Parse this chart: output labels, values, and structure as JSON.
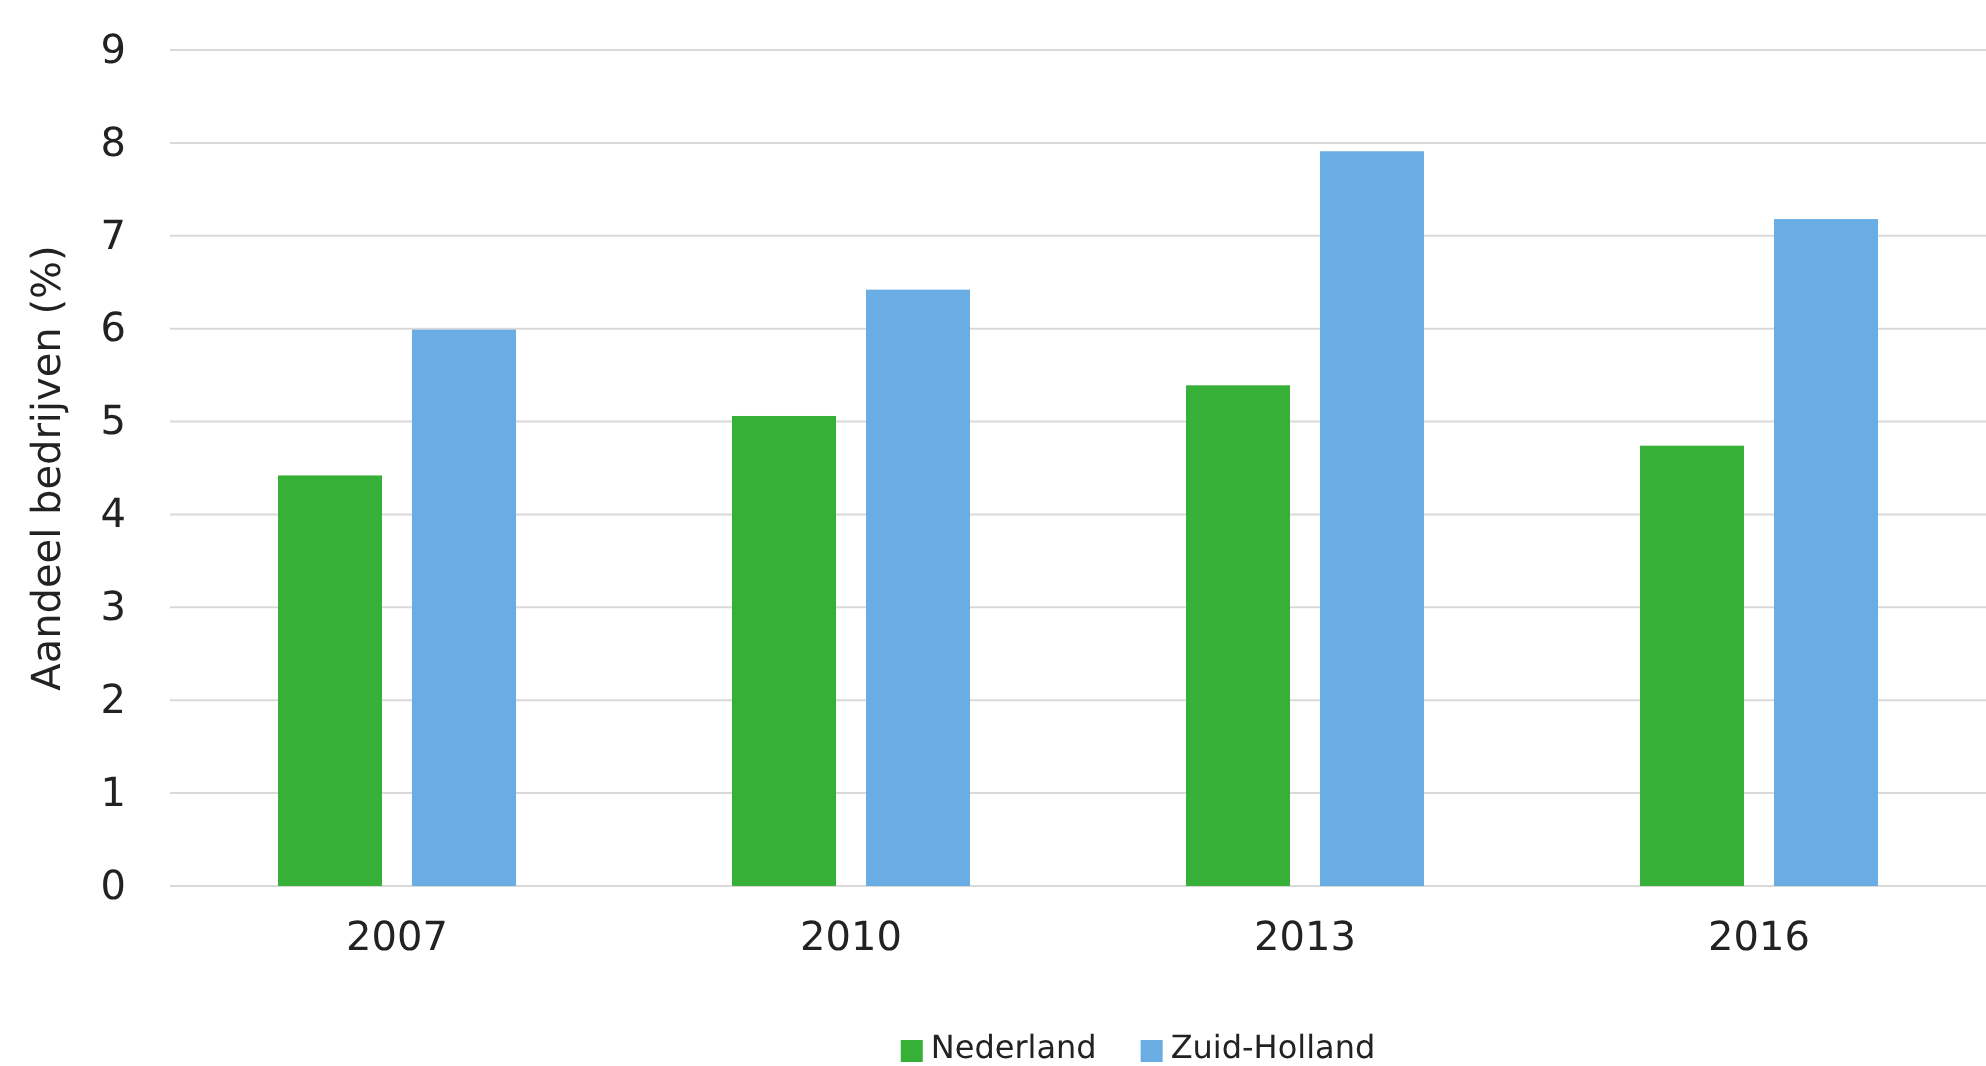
{
  "chart_data": {
    "type": "bar",
    "ylabel": "Aandeel bedrijven  (%)",
    "categories": [
      "2007",
      "2010",
      "2013",
      "2016"
    ],
    "series": [
      {
        "name": "Nederland",
        "color": "#36b037",
        "values": [
          4.42,
          5.06,
          5.39,
          4.74
        ]
      },
      {
        "name": "Zuid-Holland",
        "color": "#6aade4",
        "values": [
          5.99,
          6.42,
          7.91,
          7.18
        ]
      }
    ],
    "ylim": [
      0,
      9
    ],
    "yticks": [
      0,
      1,
      2,
      3,
      4,
      5,
      6,
      7,
      8,
      9
    ],
    "grid": "y",
    "legend": "bottom"
  }
}
